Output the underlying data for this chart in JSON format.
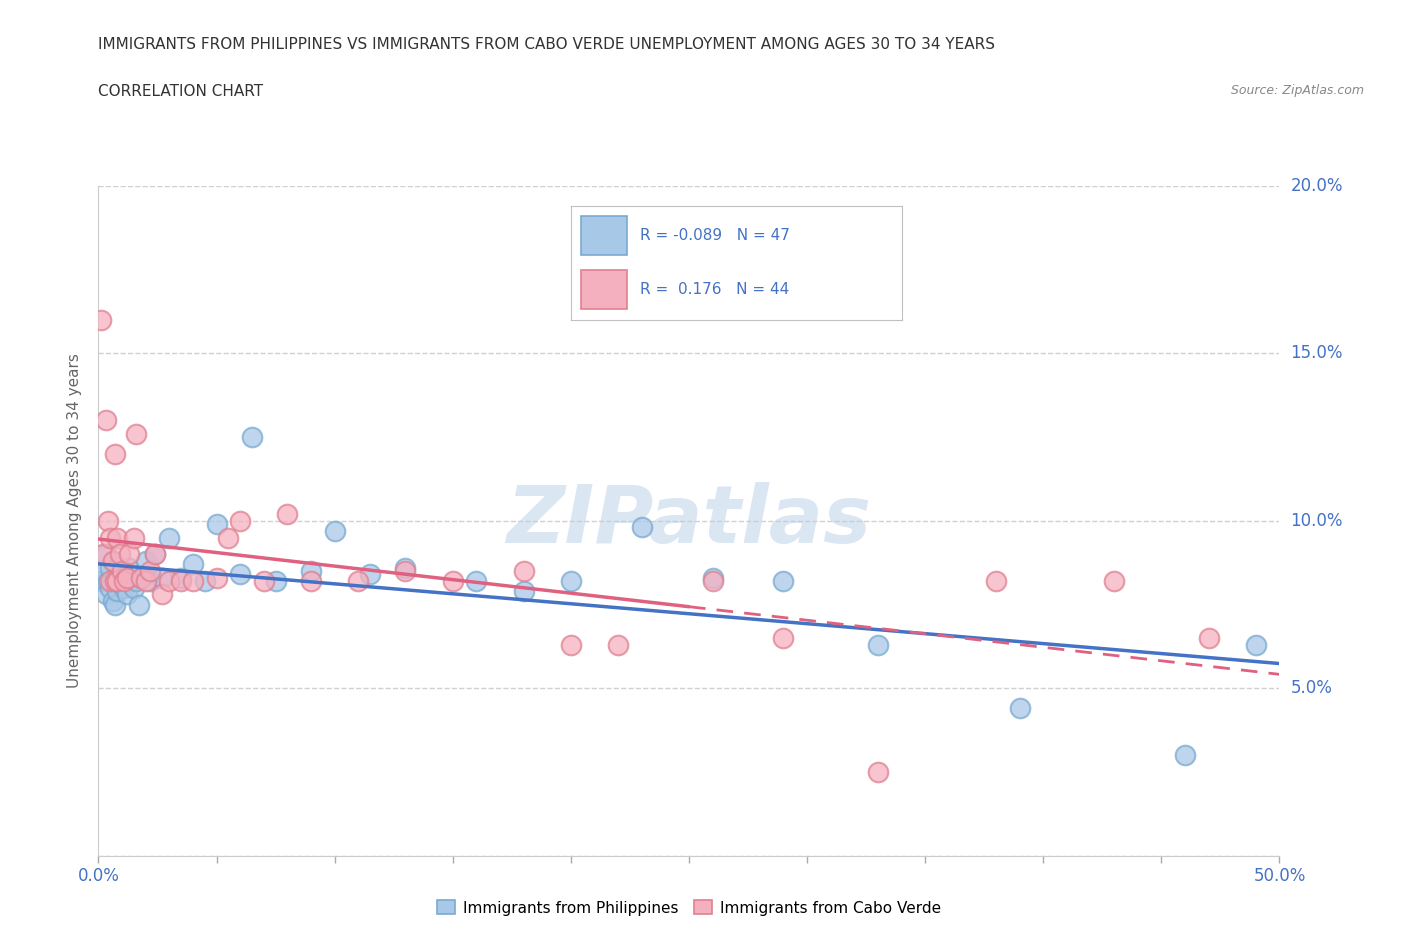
{
  "title_line1": "IMMIGRANTS FROM PHILIPPINES VS IMMIGRANTS FROM CABO VERDE UNEMPLOYMENT AMONG AGES 30 TO 34 YEARS",
  "title_line2": "CORRELATION CHART",
  "source_text": "Source: ZipAtlas.com",
  "ylabel": "Unemployment Among Ages 30 to 34 years",
  "xlim": [
    0.0,
    0.5
  ],
  "ylim": [
    0.0,
    0.2
  ],
  "xticks": [
    0.0,
    0.05,
    0.1,
    0.15,
    0.2,
    0.25,
    0.3,
    0.35,
    0.4,
    0.45,
    0.5
  ],
  "yticks": [
    0.0,
    0.05,
    0.1,
    0.15,
    0.2
  ],
  "ytick_labels": [
    "",
    "5.0%",
    "10.0%",
    "15.0%",
    "20.0%"
  ],
  "philippines_color_fill": "#a8c8e8",
  "philippines_color_edge": "#7aaad0",
  "cabo_verde_color_fill": "#f5b0c0",
  "cabo_verde_color_edge": "#e08090",
  "philippines_R": -0.089,
  "philippines_N": 47,
  "cabo_verde_R": 0.176,
  "cabo_verde_N": 44,
  "legend_label_philippines": "Immigrants from Philippines",
  "legend_label_cabo_verde": "Immigrants from Cabo Verde",
  "trend_blue_color": "#4472c4",
  "trend_pink_color": "#e06080",
  "watermark": "ZIPatlas",
  "background_color": "#ffffff",
  "grid_color": "#d0d0d0",
  "tick_label_color": "#4472c4",
  "axis_label_color": "#666666",
  "title_color": "#333333",
  "philippines_x": [
    0.001,
    0.002,
    0.003,
    0.003,
    0.004,
    0.005,
    0.005,
    0.006,
    0.006,
    0.007,
    0.007,
    0.008,
    0.009,
    0.01,
    0.011,
    0.012,
    0.013,
    0.015,
    0.016,
    0.017,
    0.018,
    0.02,
    0.022,
    0.024,
    0.027,
    0.03,
    0.035,
    0.04,
    0.045,
    0.05,
    0.06,
    0.065,
    0.075,
    0.09,
    0.1,
    0.115,
    0.13,
    0.16,
    0.18,
    0.2,
    0.23,
    0.26,
    0.29,
    0.33,
    0.39,
    0.46,
    0.49
  ],
  "philippines_y": [
    0.082,
    0.085,
    0.078,
    0.09,
    0.082,
    0.08,
    0.086,
    0.076,
    0.088,
    0.075,
    0.083,
    0.079,
    0.082,
    0.083,
    0.08,
    0.078,
    0.086,
    0.08,
    0.082,
    0.075,
    0.083,
    0.088,
    0.082,
    0.09,
    0.083,
    0.095,
    0.083,
    0.087,
    0.082,
    0.099,
    0.084,
    0.125,
    0.082,
    0.085,
    0.097,
    0.084,
    0.086,
    0.082,
    0.079,
    0.082,
    0.098,
    0.083,
    0.082,
    0.063,
    0.044,
    0.03,
    0.063
  ],
  "cabo_verde_x": [
    0.001,
    0.002,
    0.003,
    0.004,
    0.005,
    0.005,
    0.006,
    0.007,
    0.007,
    0.008,
    0.008,
    0.009,
    0.01,
    0.011,
    0.012,
    0.013,
    0.015,
    0.016,
    0.018,
    0.02,
    0.022,
    0.024,
    0.027,
    0.03,
    0.035,
    0.04,
    0.05,
    0.055,
    0.06,
    0.07,
    0.08,
    0.09,
    0.11,
    0.13,
    0.15,
    0.18,
    0.2,
    0.22,
    0.26,
    0.29,
    0.33,
    0.38,
    0.43,
    0.47
  ],
  "cabo_verde_y": [
    0.16,
    0.09,
    0.13,
    0.1,
    0.082,
    0.095,
    0.088,
    0.082,
    0.12,
    0.095,
    0.082,
    0.09,
    0.085,
    0.082,
    0.083,
    0.09,
    0.095,
    0.126,
    0.083,
    0.082,
    0.085,
    0.09,
    0.078,
    0.082,
    0.082,
    0.082,
    0.083,
    0.095,
    0.1,
    0.082,
    0.102,
    0.082,
    0.082,
    0.085,
    0.082,
    0.085,
    0.063,
    0.063,
    0.082,
    0.065,
    0.025,
    0.082,
    0.082,
    0.065
  ]
}
